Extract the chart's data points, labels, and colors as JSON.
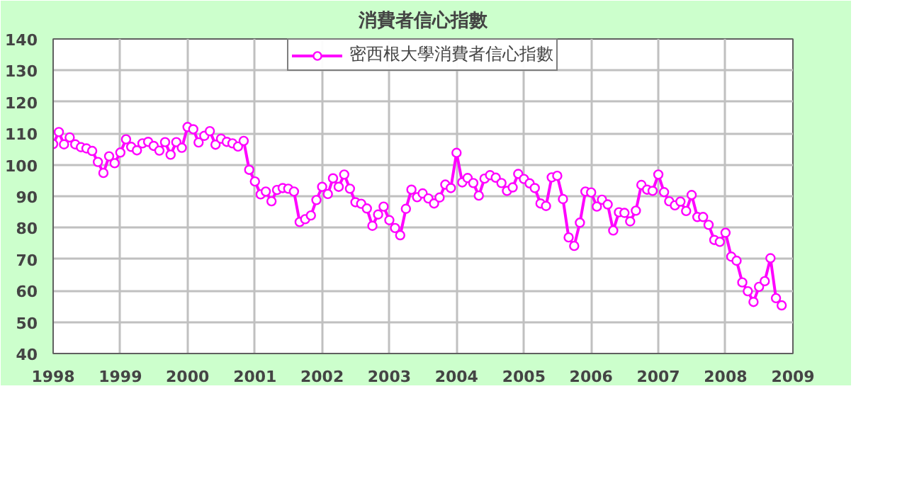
{
  "chart_data": {
    "type": "line",
    "title": "消費者信心指數",
    "legend": "top",
    "grid": true,
    "marker": "circle",
    "line_style": "solid",
    "ylim": [
      40,
      140
    ],
    "yticks": [
      40,
      50,
      60,
      70,
      80,
      90,
      100,
      110,
      120,
      130,
      140
    ],
    "xlim": [
      "1998-01",
      "2009-01"
    ],
    "xticks": [
      "1998",
      "1999",
      "2000",
      "2001",
      "2002",
      "2003",
      "2004",
      "2005",
      "2006",
      "2007",
      "2008",
      "2009"
    ],
    "x": [
      "1998-01",
      "1998-02",
      "1998-03",
      "1998-04",
      "1998-05",
      "1998-06",
      "1998-07",
      "1998-08",
      "1998-09",
      "1998-10",
      "1998-11",
      "1998-12",
      "1999-01",
      "1999-02",
      "1999-03",
      "1999-04",
      "1999-05",
      "1999-06",
      "1999-07",
      "1999-08",
      "1999-09",
      "1999-10",
      "1999-11",
      "1999-12",
      "2000-01",
      "2000-02",
      "2000-03",
      "2000-04",
      "2000-05",
      "2000-06",
      "2000-07",
      "2000-08",
      "2000-09",
      "2000-10",
      "2000-11",
      "2000-12",
      "2001-01",
      "2001-02",
      "2001-03",
      "2001-04",
      "2001-05",
      "2001-06",
      "2001-07",
      "2001-08",
      "2001-09",
      "2001-10",
      "2001-11",
      "2001-12",
      "2002-01",
      "2002-02",
      "2002-03",
      "2002-04",
      "2002-05",
      "2002-06",
      "2002-07",
      "2002-08",
      "2002-09",
      "2002-10",
      "2002-11",
      "2002-12",
      "2003-01",
      "2003-02",
      "2003-03",
      "2003-04",
      "2003-05",
      "2003-06",
      "2003-07",
      "2003-08",
      "2003-09",
      "2003-10",
      "2003-11",
      "2003-12",
      "2004-01",
      "2004-02",
      "2004-03",
      "2004-04",
      "2004-05",
      "2004-06",
      "2004-07",
      "2004-08",
      "2004-09",
      "2004-10",
      "2004-11",
      "2004-12",
      "2005-01",
      "2005-02",
      "2005-03",
      "2005-04",
      "2005-05",
      "2005-06",
      "2005-07",
      "2005-08",
      "2005-09",
      "2005-10",
      "2005-11",
      "2005-12",
      "2006-01",
      "2006-02",
      "2006-03",
      "2006-04",
      "2006-05",
      "2006-06",
      "2006-07",
      "2006-08",
      "2006-09",
      "2006-10",
      "2006-11",
      "2006-12",
      "2007-01",
      "2007-02",
      "2007-03",
      "2007-04",
      "2007-05",
      "2007-06",
      "2007-07",
      "2007-08",
      "2007-09",
      "2007-10",
      "2007-11",
      "2007-12",
      "2008-01",
      "2008-02",
      "2008-03",
      "2008-04",
      "2008-05",
      "2008-06",
      "2008-07",
      "2008-08",
      "2008-09",
      "2008-10",
      "2008-11"
    ],
    "series": [
      {
        "name": "密西根大學消費者信心指數",
        "color": "#ff00ff",
        "values": [
          106.6,
          110.4,
          106.5,
          108.7,
          106.5,
          105.6,
          105.2,
          104.4,
          100.9,
          97.4,
          102.7,
          100.5,
          103.9,
          108.1,
          105.7,
          104.6,
          106.8,
          107.3,
          106.0,
          104.5,
          107.2,
          103.2,
          107.2,
          105.4,
          112.0,
          111.3,
          107.1,
          109.2,
          110.7,
          106.4,
          108.3,
          107.3,
          106.8,
          105.8,
          107.6,
          98.4,
          94.7,
          90.6,
          91.5,
          88.4,
          92.0,
          92.6,
          92.4,
          91.5,
          81.8,
          82.7,
          83.9,
          88.8,
          93.0,
          90.7,
          95.7,
          93.0,
          96.9,
          92.4,
          88.1,
          87.6,
          86.1,
          80.6,
          84.2,
          86.7,
          82.4,
          79.9,
          77.6,
          86.0,
          92.1,
          89.7,
          90.9,
          89.3,
          87.7,
          89.6,
          93.7,
          92.6,
          103.8,
          94.4,
          95.8,
          94.2,
          90.2,
          95.6,
          96.7,
          95.9,
          94.2,
          91.7,
          92.8,
          97.1,
          95.5,
          94.1,
          92.6,
          87.7,
          86.9,
          96.0,
          96.5,
          89.1,
          76.9,
          74.2,
          81.6,
          91.5,
          91.2,
          86.7,
          88.9,
          87.4,
          79.1,
          84.9,
          84.7,
          82.0,
          85.4,
          93.6,
          92.1,
          91.7,
          96.9,
          91.3,
          88.4,
          87.1,
          88.3,
          85.3,
          90.4,
          83.4,
          83.4,
          80.9,
          76.1,
          75.5,
          78.4,
          70.8,
          69.5,
          62.6,
          59.8,
          56.4,
          61.2,
          63.0,
          70.3,
          57.6,
          55.3
        ]
      }
    ]
  }
}
